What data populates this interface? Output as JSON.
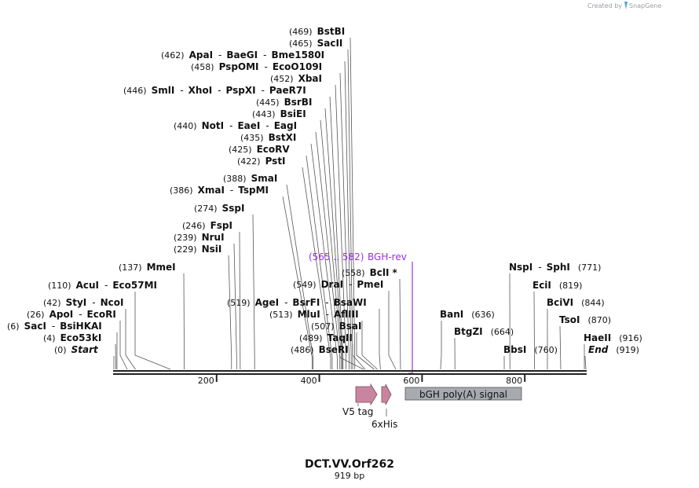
{
  "brand": {
    "prefix": "Created by",
    "name": "SnapGene"
  },
  "map": {
    "name": "DCT.VV.Orf262",
    "size_label": "919 bp",
    "length": 919,
    "ticks": [
      200,
      400,
      600,
      800
    ]
  },
  "sites": [
    {
      "id": "start",
      "pos": "(0)",
      "names": [
        "Start"
      ],
      "bp": 0,
      "italic": true
    },
    {
      "id": "eco53ki",
      "pos": "(4)",
      "names": [
        "Eco53kI"
      ],
      "bp": 4
    },
    {
      "id": "saci",
      "pos": "(6)",
      "names": [
        "SacI",
        "BsiHKAI"
      ],
      "bp": 6
    },
    {
      "id": "apoi",
      "pos": "(26)",
      "names": [
        "ApoI",
        "EcoRI"
      ],
      "bp": 26
    },
    {
      "id": "styi",
      "pos": "(42)",
      "names": [
        "StyI",
        "NcoI"
      ],
      "bp": 42
    },
    {
      "id": "acui",
      "pos": "(110)",
      "names": [
        "AcuI",
        "Eco57MI"
      ],
      "bp": 110
    },
    {
      "id": "mmei",
      "pos": "(137)",
      "names": [
        "MmeI"
      ],
      "bp": 137
    },
    {
      "id": "nsii",
      "pos": "(229)",
      "names": [
        "NsiI"
      ],
      "bp": 229
    },
    {
      "id": "nrui",
      "pos": "(239)",
      "names": [
        "NruI"
      ],
      "bp": 239
    },
    {
      "id": "fspi",
      "pos": "(246)",
      "names": [
        "FspI"
      ],
      "bp": 246
    },
    {
      "id": "sspi",
      "pos": "(274)",
      "names": [
        "SspI"
      ],
      "bp": 274
    },
    {
      "id": "xmai",
      "pos": "(386)",
      "names": [
        "XmaI",
        "TspMI"
      ],
      "bp": 386
    },
    {
      "id": "smai",
      "pos": "(388)",
      "names": [
        "SmaI"
      ],
      "bp": 388
    },
    {
      "id": "psti",
      "pos": "(422)",
      "names": [
        "PstI"
      ],
      "bp": 422
    },
    {
      "id": "ecorv",
      "pos": "(425)",
      "names": [
        "EcoRV"
      ],
      "bp": 425
    },
    {
      "id": "bstxi",
      "pos": "(435)",
      "names": [
        "BstXI"
      ],
      "bp": 435
    },
    {
      "id": "noti",
      "pos": "(440)",
      "names": [
        "NotI",
        "EaeI",
        "EagI"
      ],
      "bp": 440
    },
    {
      "id": "bsiei",
      "pos": "(443)",
      "names": [
        "BsiEI"
      ],
      "bp": 443
    },
    {
      "id": "bsrbi",
      "pos": "(445)",
      "names": [
        "BsrBI"
      ],
      "bp": 445
    },
    {
      "id": "smli",
      "pos": "(446)",
      "names": [
        "SmlI",
        "XhoI",
        "PspXI",
        "PaeR7I"
      ],
      "bp": 446
    },
    {
      "id": "xbai",
      "pos": "(452)",
      "names": [
        "XbaI"
      ],
      "bp": 452
    },
    {
      "id": "pspomi",
      "pos": "(458)",
      "names": [
        "PspOMI",
        "EcoO109I"
      ],
      "bp": 458
    },
    {
      "id": "apai",
      "pos": "(462)",
      "names": [
        "ApaI",
        "BaeGI",
        "Bme1580I"
      ],
      "bp": 462
    },
    {
      "id": "sacii",
      "pos": "(465)",
      "names": [
        "SacII"
      ],
      "bp": 465
    },
    {
      "id": "bstbi",
      "pos": "(469)",
      "names": [
        "BstBI"
      ],
      "bp": 469
    },
    {
      "id": "bseri",
      "pos": "(486)",
      "names": [
        "BseRI"
      ],
      "bp": 486
    },
    {
      "id": "taqii",
      "pos": "(489)",
      "names": [
        "TaqII"
      ],
      "bp": 489
    },
    {
      "id": "bsai",
      "pos": "(507)",
      "names": [
        "BsaI"
      ],
      "bp": 507
    },
    {
      "id": "mlui",
      "pos": "(513)",
      "names": [
        "MluI",
        "AflIII"
      ],
      "bp": 513
    },
    {
      "id": "agei",
      "pos": "(519)",
      "names": [
        "AgeI",
        "BsrFI",
        "BsaWI"
      ],
      "bp": 519
    },
    {
      "id": "drai",
      "pos": "(549)",
      "names": [
        "DraI",
        "PmeI"
      ],
      "bp": 549
    },
    {
      "id": "bcli",
      "pos": "(558)",
      "names": [
        "BclI"
      ],
      "bp": 558,
      "star": "*"
    },
    {
      "id": "bani",
      "pos": "(636)",
      "names": [
        "BanI"
      ],
      "bp": 636
    },
    {
      "id": "btgzi",
      "pos": "(664)",
      "names": [
        "BtgZI"
      ],
      "bp": 664
    },
    {
      "id": "bbsi",
      "pos": "(760)",
      "names": [
        "BbsI"
      ],
      "bp": 760
    },
    {
      "id": "nspi",
      "pos": "(771)",
      "names": [
        "NspI",
        "SphI"
      ],
      "bp": 771
    },
    {
      "id": "ecii",
      "pos": "(819)",
      "names": [
        "EciI"
      ],
      "bp": 819
    },
    {
      "id": "bcivi",
      "pos": "(844)",
      "names": [
        "BciVI"
      ],
      "bp": 844
    },
    {
      "id": "tsoi",
      "pos": "(870)",
      "names": [
        "TsoI"
      ],
      "bp": 870
    },
    {
      "id": "haeii",
      "pos": "(916)",
      "names": [
        "HaeII"
      ],
      "bp": 916
    },
    {
      "id": "end",
      "pos": "(919)",
      "names": [
        "End"
      ],
      "bp": 919,
      "italic": true
    }
  ],
  "primer": {
    "name": "BGH-rev",
    "range": "(565 .. 582)",
    "color": "#9b30d9"
  },
  "features": [
    {
      "id": "v5",
      "name": "V5 tag",
      "kind": "arrow",
      "color": "#c9859f"
    },
    {
      "id": "his",
      "name": "6xHis",
      "kind": "arrow",
      "color": "#c9859f"
    },
    {
      "id": "bgh",
      "name": "bGH poly(A) signal",
      "kind": "box",
      "color": "#a7abb0"
    }
  ]
}
